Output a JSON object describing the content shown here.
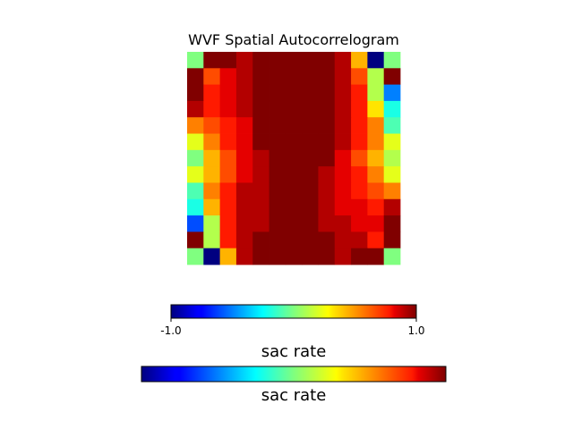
{
  "chart_data": {
    "type": "heatmap",
    "title": "WVF Spatial Autocorrelogram",
    "colormap": "jet",
    "value_range": [
      -1.0,
      1.0
    ],
    "rows": 13,
    "cols": 13,
    "values": [
      [
        0.0,
        1.0,
        1.0,
        0.9,
        1.0,
        1.0,
        1.0,
        1.0,
        1.0,
        0.9,
        0.4,
        -1.0,
        0.0
      ],
      [
        1.0,
        0.6,
        0.8,
        0.9,
        1.0,
        1.0,
        1.0,
        1.0,
        1.0,
        0.9,
        0.6,
        0.1,
        1.0
      ],
      [
        1.0,
        0.7,
        0.8,
        0.9,
        1.0,
        1.0,
        1.0,
        1.0,
        1.0,
        0.9,
        0.7,
        0.1,
        -0.5
      ],
      [
        0.9,
        0.7,
        0.8,
        0.9,
        1.0,
        1.0,
        1.0,
        1.0,
        1.0,
        0.9,
        0.7,
        0.3,
        -0.2
      ],
      [
        0.5,
        0.6,
        0.7,
        0.8,
        1.0,
        1.0,
        1.0,
        1.0,
        1.0,
        0.9,
        0.7,
        0.5,
        -0.1
      ],
      [
        0.2,
        0.5,
        0.7,
        0.8,
        1.0,
        1.0,
        1.0,
        1.0,
        1.0,
        0.9,
        0.7,
        0.5,
        0.2
      ],
      [
        0.0,
        0.4,
        0.6,
        0.8,
        0.9,
        1.0,
        1.0,
        1.0,
        1.0,
        0.8,
        0.6,
        0.4,
        0.1
      ],
      [
        0.2,
        0.4,
        0.6,
        0.8,
        0.9,
        1.0,
        1.0,
        1.0,
        0.9,
        0.8,
        0.7,
        0.5,
        0.2
      ],
      [
        -0.1,
        0.5,
        0.7,
        0.9,
        0.9,
        1.0,
        1.0,
        1.0,
        0.9,
        0.8,
        0.7,
        0.6,
        0.5
      ],
      [
        -0.2,
        0.4,
        0.7,
        0.9,
        0.9,
        1.0,
        1.0,
        1.0,
        0.9,
        0.8,
        0.8,
        0.7,
        0.9
      ],
      [
        -0.6,
        0.1,
        0.7,
        0.9,
        0.9,
        1.0,
        1.0,
        1.0,
        0.9,
        0.9,
        0.8,
        0.8,
        1.0
      ],
      [
        1.0,
        0.1,
        0.7,
        0.9,
        1.0,
        1.0,
        1.0,
        1.0,
        1.0,
        0.9,
        0.9,
        0.7,
        1.0
      ],
      [
        0.0,
        -1.0,
        0.4,
        0.9,
        1.0,
        1.0,
        1.0,
        1.0,
        1.0,
        0.9,
        1.0,
        1.0,
        0.0
      ]
    ],
    "colorbars": [
      {
        "label": "sac rate",
        "ticks": [
          "-1.0",
          "1.0"
        ]
      },
      {
        "label": "sac rate",
        "ticks": []
      }
    ]
  }
}
